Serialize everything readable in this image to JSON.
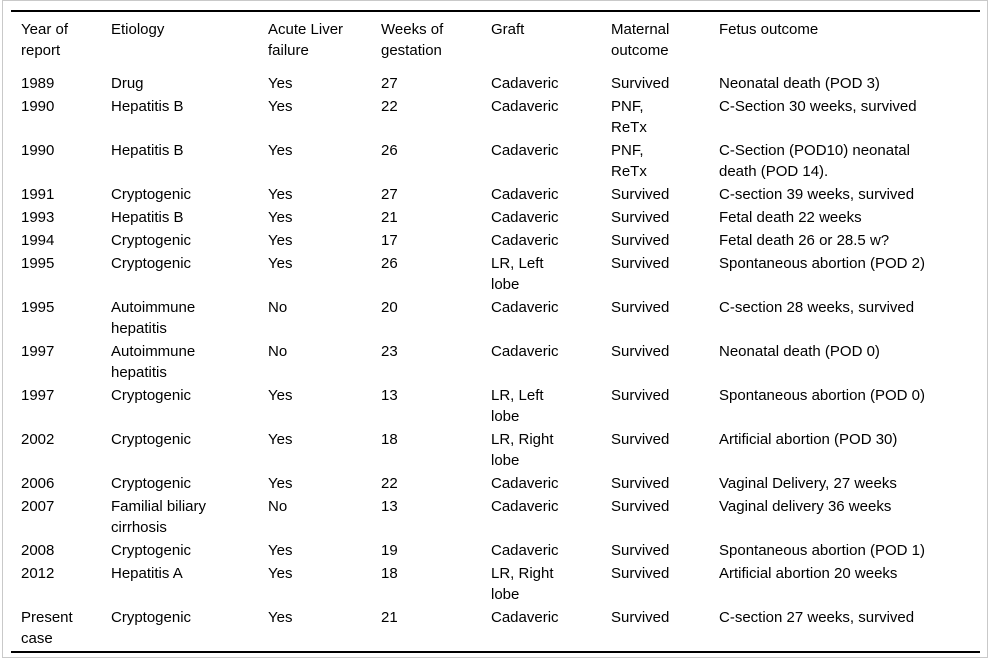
{
  "colors": {
    "background": "#ffffff",
    "text": "#000000",
    "table_rule": "#000000",
    "outer_frame": "#c9c9c9"
  },
  "table": {
    "columns": [
      "Year of\nreport",
      "Etiology",
      "Acute Liver\nfailure",
      "Weeks of\ngestation",
      "Graft",
      "Maternal\noutcome",
      "Fetus outcome"
    ],
    "rows": [
      {
        "cells": [
          "1989",
          "Drug",
          "Yes",
          "27",
          "Cadaveric",
          "Survived",
          "Neonatal death (POD 3)"
        ]
      },
      {
        "cells": [
          "1990",
          "Hepatitis B",
          "Yes",
          "22",
          "Cadaveric",
          "PNF,\nReTx",
          "C-Section 30 weeks, survived"
        ]
      },
      {
        "cells": [
          "1990",
          "Hepatitis B",
          "Yes",
          "26",
          "Cadaveric",
          "PNF,\nReTx",
          "C-Section (POD10) neonatal\ndeath (POD 14)."
        ]
      },
      {
        "cells": [
          "1991",
          "Cryptogenic",
          "Yes",
          "27",
          "Cadaveric",
          "Survived",
          "C-section 39 weeks, survived"
        ]
      },
      {
        "cells": [
          "1993",
          "Hepatitis B",
          "Yes",
          "21",
          "Cadaveric",
          "Survived",
          "Fetal death 22 weeks"
        ]
      },
      {
        "cells": [
          "1994",
          "Cryptogenic",
          "Yes",
          "17",
          "Cadaveric",
          "Survived",
          "Fetal death 26 or 28.5 w?"
        ]
      },
      {
        "cells": [
          "1995",
          "Cryptogenic",
          "Yes",
          "26",
          "LR, Left\nlobe",
          "Survived",
          "Spontaneous abortion (POD 2)"
        ]
      },
      {
        "cells": [
          "1995",
          "Autoimmune\nhepatitis",
          "No",
          "20",
          "Cadaveric",
          "Survived",
          "C-section 28 weeks, survived"
        ]
      },
      {
        "cells": [
          "1997",
          "Autoimmune\nhepatitis",
          "No",
          "23",
          "Cadaveric",
          "Survived",
          "Neonatal death (POD 0)"
        ]
      },
      {
        "cells": [
          "1997",
          "Cryptogenic",
          "Yes",
          "13",
          "LR, Left\nlobe",
          "Survived",
          "Spontaneous abortion (POD 0)"
        ]
      },
      {
        "cells": [
          "2002",
          "Cryptogenic",
          "Yes",
          "18",
          "LR, Right\nlobe",
          "Survived",
          "Artificial abortion (POD 30)"
        ]
      },
      {
        "cells": [
          "2006",
          "Cryptogenic",
          "Yes",
          "22",
          "Cadaveric",
          "Survived",
          "Vaginal Delivery, 27 weeks"
        ]
      },
      {
        "cells": [
          "2007",
          "Familial biliary\ncirrhosis",
          "No",
          "13",
          "Cadaveric",
          "Survived",
          "Vaginal delivery 36 weeks"
        ]
      },
      {
        "cells": [
          "2008",
          "Cryptogenic",
          "Yes",
          "19",
          "Cadaveric",
          "Survived",
          "Spontaneous abortion (POD 1)"
        ]
      },
      {
        "cells": [
          "2012",
          "Hepatitis A",
          "Yes",
          "18",
          "LR, Right\nlobe",
          "Survived",
          "Artificial abortion 20 weeks"
        ]
      },
      {
        "cells": [
          "Present\ncase",
          "Cryptogenic",
          "Yes",
          "21",
          "Cadaveric",
          "Survived",
          "C-section 27 weeks, survived"
        ]
      }
    ]
  }
}
